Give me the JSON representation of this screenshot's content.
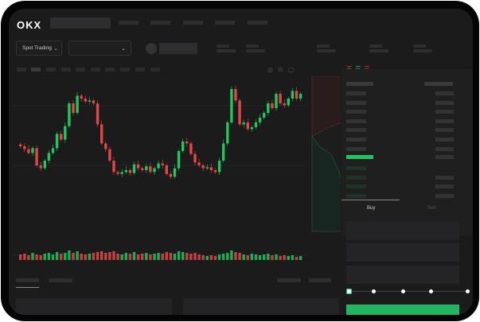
{
  "header": {
    "logo": "OKX"
  },
  "toolbar": {
    "market_dropdown": "Spot Trading"
  },
  "trade": {
    "tabs": [
      "Buy",
      "Sell"
    ]
  },
  "colors": {
    "up": "#22c55e",
    "down": "#e04848",
    "buy_button": "#22b660"
  },
  "slider": {
    "value_percent": 0,
    "stops": [
      0,
      25,
      50,
      75,
      100
    ]
  },
  "chart_data": {
    "type": "candlestick",
    "closes": [
      115,
      112,
      108,
      113,
      95,
      92,
      100,
      108,
      113,
      128,
      122,
      136,
      160,
      150,
      168,
      165,
      162,
      163,
      160,
      138,
      118,
      112,
      100,
      88,
      86,
      88,
      90,
      87,
      96,
      92,
      90,
      94,
      88,
      92,
      97,
      95,
      86,
      83,
      92,
      110,
      120,
      118,
      107,
      98,
      95,
      92,
      93,
      90,
      88,
      100,
      118,
      140,
      175,
      163,
      138,
      140,
      133,
      135,
      140,
      145,
      150,
      160,
      155,
      170,
      160,
      158,
      165,
      173,
      165,
      170
    ],
    "volumes": [
      7,
      8,
      6,
      9,
      7,
      6,
      8,
      9,
      7,
      10,
      8,
      9,
      12,
      9,
      11,
      8,
      7,
      8,
      9,
      10,
      11,
      9,
      10,
      11,
      8,
      7,
      9,
      8,
      10,
      7,
      8,
      9,
      7,
      8,
      9,
      8,
      10,
      9,
      8,
      11,
      10,
      9,
      8,
      9,
      7,
      6,
      5,
      6,
      5,
      7,
      8,
      9,
      12,
      10,
      9,
      7,
      6,
      8,
      7,
      6,
      7,
      8,
      6,
      7,
      5,
      6,
      5,
      6,
      4,
      5
    ]
  }
}
